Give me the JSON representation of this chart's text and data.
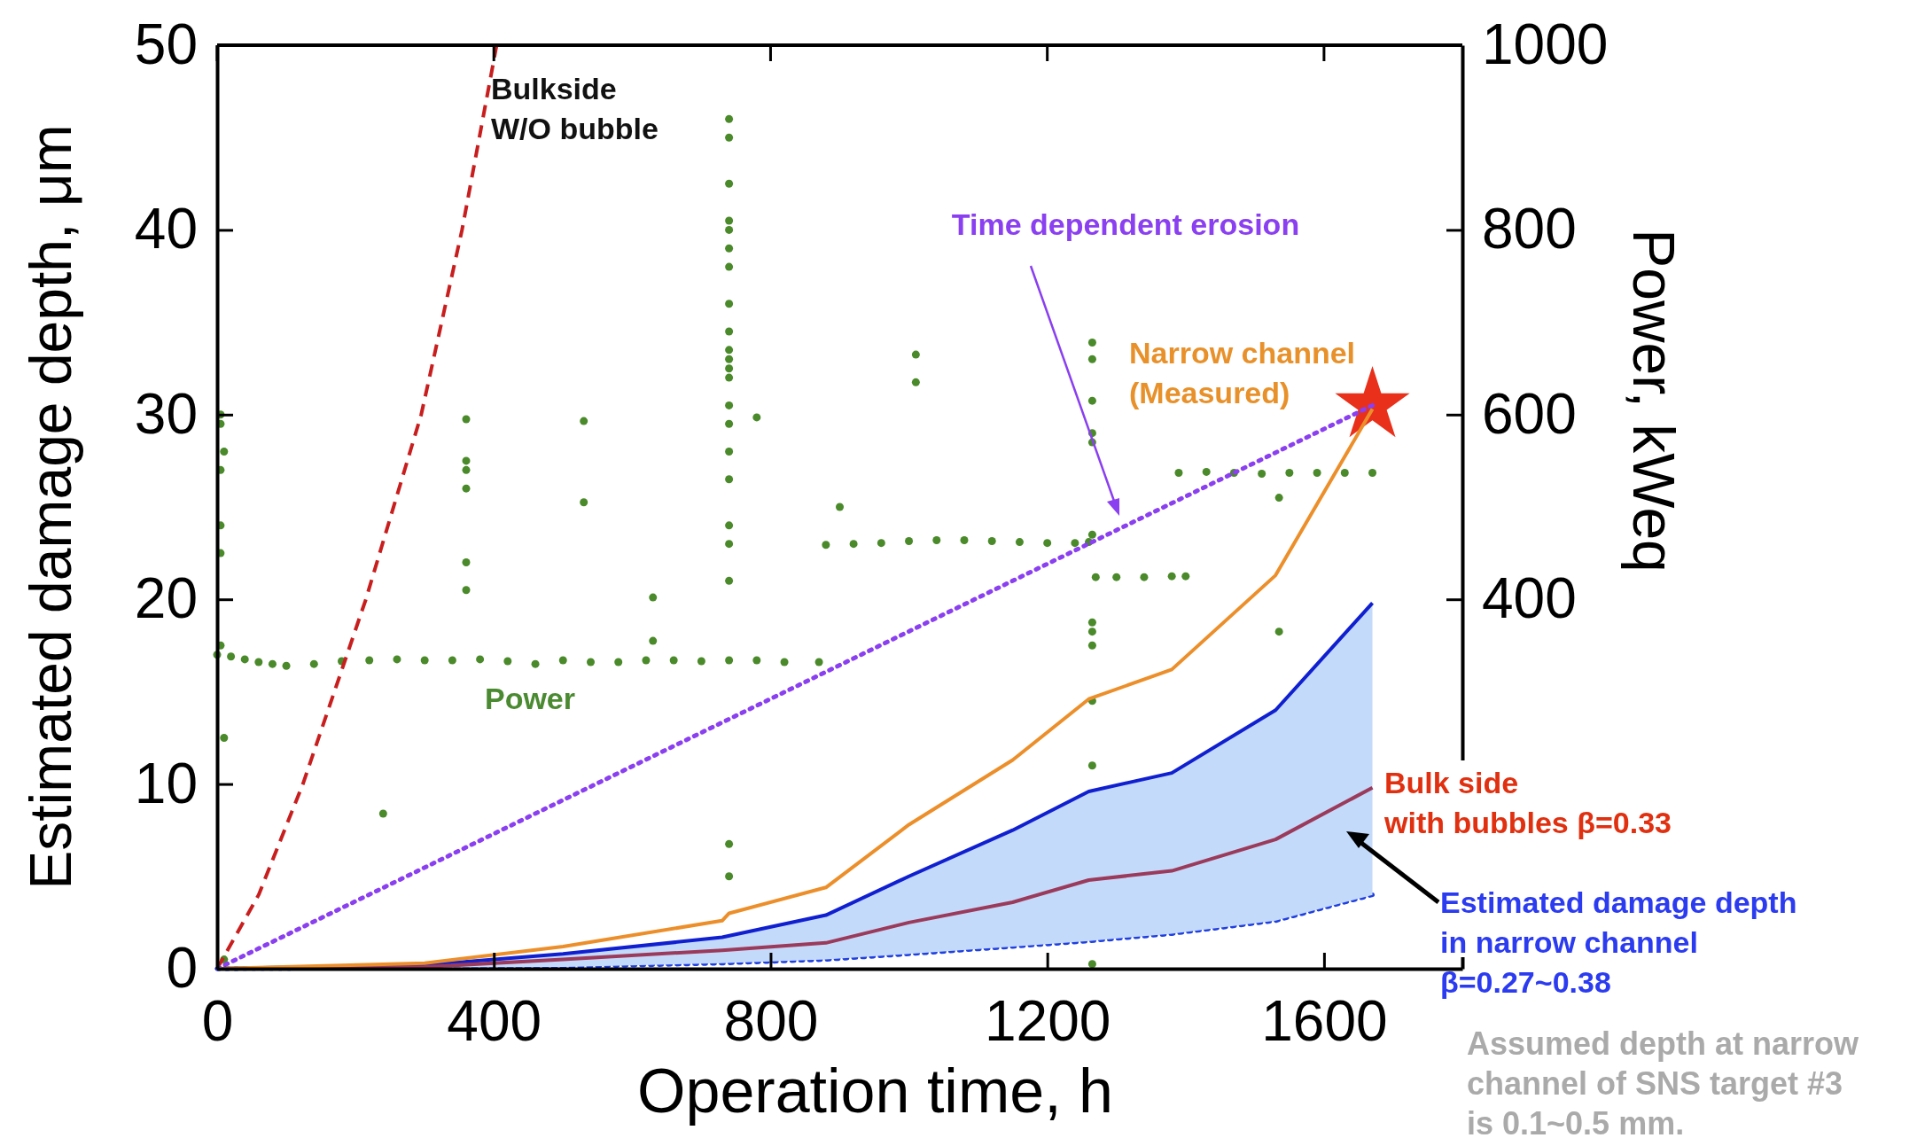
{
  "chart_data": {
    "type": "line",
    "xlabel": "Operation time, h",
    "ylabel": "Estimated damage depth, μm",
    "y2label": "Power, kWeq",
    "xlim": [
      0,
      1800
    ],
    "xticks": [
      0,
      400,
      800,
      1200,
      1600
    ],
    "ylim": [
      0,
      50
    ],
    "yticks": [
      0,
      10,
      20,
      30,
      40,
      50
    ],
    "y2lim": [
      0,
      1000
    ],
    "y2ticks": [
      400,
      600,
      800,
      1000
    ],
    "annotations": [
      "Assumed depth at narrow\nchannel of SNS target #3\nis 0.1~0.5 mm."
    ],
    "series": [
      {
        "name": "Power",
        "type": "scatter",
        "axis": "y2",
        "marker": "circle",
        "color": "#4a8a2a",
        "x": [
          0,
          20,
          40,
          60,
          80,
          100,
          140,
          180,
          220,
          260,
          300,
          340,
          380,
          420,
          460,
          500,
          540,
          580,
          620,
          660,
          700,
          740,
          780,
          820,
          870,
          880,
          920,
          960,
          1000,
          1040,
          1080,
          1120,
          1160,
          1200,
          1240,
          1260,
          1270,
          1300,
          1340,
          1380,
          1400,
          1390,
          1430,
          1470,
          1510,
          1550,
          1590,
          1630,
          1670,
          5,
          5,
          5,
          5,
          5,
          5,
          10,
          10,
          10,
          240,
          360,
          360,
          360,
          360,
          360,
          360,
          530,
          530,
          630,
          630,
          740,
          740,
          740,
          740,
          740,
          740,
          740,
          740,
          740,
          740,
          740,
          740,
          740,
          740,
          740,
          740,
          740,
          740,
          740,
          740,
          740,
          740,
          780,
          900,
          1010,
          1010,
          1265,
          1265,
          1265,
          1265,
          1265,
          1265,
          1265,
          1265,
          1265,
          1265,
          1265,
          1265,
          1535,
          1535
        ],
        "values": [
          340,
          338,
          335,
          332,
          330,
          328,
          330,
          333,
          334,
          335,
          334,
          334,
          335,
          333,
          330,
          334,
          332,
          332,
          334,
          334,
          333,
          334,
          334,
          332,
          332,
          459,
          460,
          461,
          463,
          464,
          464,
          463,
          462,
          461,
          461,
          462,
          424,
          424,
          424,
          425,
          425,
          537,
          538,
          537,
          536,
          537,
          537,
          537,
          537,
          600,
          590,
          540,
          480,
          450,
          350,
          560,
          250,
          10,
          168,
          595,
          550,
          540,
          520,
          440,
          410,
          593,
          505,
          402,
          355,
          920,
          900,
          850,
          810,
          800,
          780,
          760,
          720,
          690,
          670,
          660,
          650,
          640,
          610,
          590,
          560,
          530,
          480,
          460,
          420,
          135,
          100,
          597,
          500,
          665,
          635,
          678,
          660,
          615,
          580,
          570,
          470,
          375,
          365,
          350,
          290,
          220,
          5,
          510,
          365
        ]
      },
      {
        "name": "Bulkside\nW/O bubble",
        "line_style": "dashed",
        "color": "#c81e1e",
        "x": [
          0,
          60,
          124,
          215,
          295,
          354,
          404
        ],
        "values": [
          0,
          4,
          10,
          20,
          30,
          40,
          50
        ]
      },
      {
        "name": "Time dependent erosion",
        "line_style": "dotted",
        "color": "#8a3ff0",
        "x": [
          0,
          1670
        ],
        "values": [
          0,
          30.5
        ]
      },
      {
        "line_style": "dotted",
        "color": "#1f3fe0",
        "x": [
          0,
          300,
          500,
          730,
          880,
          1000,
          1150,
          1260,
          1380,
          1530,
          1670
        ],
        "values": [
          0,
          0.05,
          0.1,
          0.3,
          0.5,
          0.8,
          1.2,
          1.5,
          1.9,
          2.6,
          4.0
        ]
      },
      {
        "name": "Estimated damage depth\nin narrow channel\nβ=0.27~0.38",
        "line_style": "solid",
        "color": "#1020d0",
        "x": [
          0,
          300,
          500,
          730,
          880,
          1000,
          1150,
          1260,
          1380,
          1530,
          1670
        ],
        "values": [
          0,
          0.2,
          0.8,
          1.7,
          2.9,
          5.0,
          7.5,
          9.6,
          10.6,
          14.0,
          19.8
        ],
        "lower": [
          0,
          0.05,
          0.1,
          0.3,
          0.5,
          0.8,
          1.2,
          1.5,
          1.9,
          2.6,
          4.0
        ],
        "upper": [
          0,
          0.2,
          0.8,
          1.7,
          2.9,
          5.0,
          7.5,
          9.6,
          10.6,
          14.0,
          19.8
        ]
      },
      {
        "name": "Bulk side\nwith bubbles β=0.33",
        "line_style": "solid",
        "color": "#9b3a5a",
        "x": [
          0,
          300,
          500,
          730,
          880,
          1000,
          1150,
          1260,
          1380,
          1530,
          1670
        ],
        "values": [
          0,
          0.1,
          0.5,
          1.0,
          1.4,
          2.5,
          3.6,
          4.8,
          5.3,
          7.0,
          9.8
        ]
      },
      {
        "name": "Narrow channel\n(Measured)",
        "line_style": "solid",
        "color": "#ec8f2a",
        "x": [
          0,
          300,
          500,
          730,
          740,
          880,
          1000,
          1150,
          1260,
          1380,
          1530,
          1670
        ],
        "values": [
          0,
          0.3,
          1.2,
          2.6,
          3.0,
          4.4,
          7.8,
          11.3,
          14.6,
          16.2,
          21.3,
          30.3
        ]
      },
      {
        "type": "scatter",
        "marker": "star",
        "color": "#e8301a",
        "x": [
          1670
        ],
        "values": [
          30.5
        ]
      }
    ]
  }
}
